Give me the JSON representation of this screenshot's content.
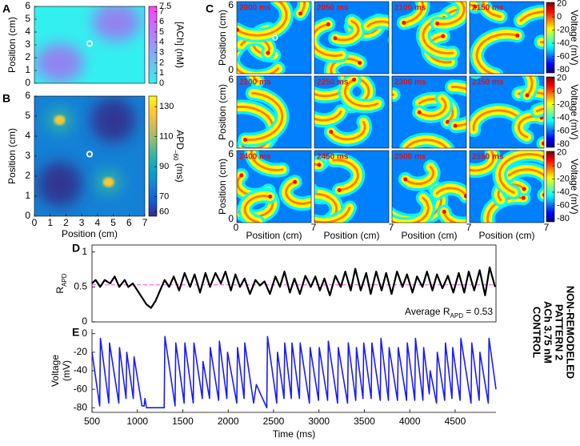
{
  "chart_data": [
    {
      "type": "heatmap",
      "label": "A",
      "ylabel": "Position (cm)",
      "xlim": [
        0,
        7
      ],
      "ylim": [
        0,
        6
      ],
      "yticks": [
        0,
        1,
        2,
        3,
        4,
        5,
        6
      ],
      "marker": [
        3.5,
        3.1
      ],
      "colorbar": {
        "label": "[ACh] (nM)",
        "lim": [
          0,
          7.5
        ],
        "ticks": [
          0,
          1,
          2,
          3,
          4,
          5,
          6,
          7,
          7.5
        ],
        "colors": [
          "#33f0f0",
          "#ff40ff"
        ]
      }
    },
    {
      "type": "heatmap",
      "label": "B",
      "xlabel": "Position (cm)",
      "ylabel": "Position (cm)",
      "xlim": [
        0,
        7
      ],
      "ylim": [
        0,
        6
      ],
      "xticks": [
        0,
        1,
        2,
        3,
        4,
        5,
        6,
        7
      ],
      "yticks": [
        0,
        1,
        2,
        3,
        4,
        5,
        6
      ],
      "marker": [
        3.5,
        3.1
      ],
      "colorbar": {
        "label": "APD",
        "label_sub": "−60",
        "label_unit": " (ms)",
        "lim": [
          57,
          137
        ],
        "ticks": [
          60,
          70,
          90,
          110,
          130
        ],
        "colors": [
          "#352a87",
          "#0f5cdd",
          "#1481d6",
          "#06a4ca",
          "#2eb7a4",
          "#87bf77",
          "#d1bb59",
          "#fec832",
          "#f9fb0e"
        ]
      }
    },
    {
      "type": "heatmap-grid",
      "label": "C",
      "frames": [
        "2000 ms",
        "2050 ms",
        "2100 ms",
        "2150 ms",
        "2200 ms",
        "2250 ms",
        "2300 ms",
        "2350 ms",
        "2400 ms",
        "2450 ms",
        "2500 ms",
        "2550 ms"
      ],
      "xlabel": "Position (cm)",
      "ylabel": "Position (cm)",
      "xlim": [
        0,
        7
      ],
      "ylim": [
        0,
        6
      ],
      "xticks": [
        0,
        7
      ],
      "yticks": [
        0,
        6
      ],
      "marker": [
        3.6,
        3.0
      ],
      "colorbar": {
        "label": "Voltage (mV)",
        "lim": [
          -85,
          22
        ],
        "ticks": [
          -80,
          -60,
          -40,
          -20,
          0,
          20
        ],
        "colors": [
          "#00007f",
          "#0000ff",
          "#007fff",
          "#00ffff",
          "#7fff7f",
          "#ffff00",
          "#ff7f00",
          "#ff0000",
          "#7f0000"
        ]
      }
    },
    {
      "type": "line",
      "label": "D",
      "ylabel": "R",
      "ylabel_sub": "APD",
      "xlim": [
        500,
        4950
      ],
      "ylim": [
        0,
        1.1
      ],
      "yticks": [
        0,
        0.5,
        1
      ],
      "x": [
        500,
        540,
        590,
        640,
        700,
        750,
        800,
        860,
        900,
        950,
        1000,
        1050,
        1100,
        1150,
        1200,
        1250,
        1300,
        1350,
        1400,
        1460,
        1520,
        1580,
        1630,
        1690,
        1750,
        1800,
        1860,
        1920,
        1970,
        2030,
        2080,
        2130,
        2180,
        2240,
        2300,
        2350,
        2400,
        2460,
        2520,
        2570,
        2620,
        2680,
        2730,
        2790,
        2850,
        2910,
        2960,
        3010,
        3060,
        3120,
        3180,
        3240,
        3290,
        3350,
        3400,
        3460,
        3520,
        3570,
        3630,
        3690,
        3740,
        3800,
        3860,
        3920,
        3970,
        4030,
        4080,
        4140,
        4190,
        4250,
        4300,
        4360,
        4420,
        4480,
        4540,
        4600,
        4650,
        4710,
        4770,
        4830,
        4880,
        4940
      ],
      "series": [
        {
          "color": "#000000",
          "values": [
            0.55,
            0.6,
            0.5,
            0.6,
            0.55,
            0.65,
            0.5,
            0.6,
            0.5,
            0.55,
            0.45,
            0.35,
            0.25,
            0.2,
            0.3,
            0.45,
            0.6,
            0.5,
            0.65,
            0.45,
            0.7,
            0.5,
            0.68,
            0.42,
            0.7,
            0.5,
            0.7,
            0.55,
            0.72,
            0.45,
            0.68,
            0.5,
            0.62,
            0.4,
            0.6,
            0.52,
            0.58,
            0.4,
            0.65,
            0.5,
            0.72,
            0.42,
            0.62,
            0.4,
            0.66,
            0.5,
            0.65,
            0.45,
            0.62,
            0.38,
            0.66,
            0.5,
            0.72,
            0.45,
            0.76,
            0.45,
            0.7,
            0.4,
            0.72,
            0.45,
            0.7,
            0.4,
            0.72,
            0.5,
            0.68,
            0.42,
            0.65,
            0.5,
            0.72,
            0.45,
            0.68,
            0.48,
            0.66,
            0.42,
            0.7,
            0.42,
            0.72,
            0.45,
            0.74,
            0.38,
            0.78,
            0.5
          ]
        }
      ],
      "reference": {
        "value": 0.53,
        "color": "#ff40ff"
      },
      "annotation": [
        "Average R",
        "APD",
        " = 0.53"
      ]
    },
    {
      "type": "line",
      "label": "E",
      "ylabel": [
        "Voltage",
        "(mV)"
      ],
      "xlabel": "Time (ms)",
      "xlim": [
        500,
        4950
      ],
      "ylim": [
        -85,
        5
      ],
      "xticks": [
        500,
        1000,
        1500,
        2000,
        2500,
        3000,
        3500,
        4000,
        4500
      ],
      "yticks": [
        0,
        -20,
        -40,
        -60,
        -80
      ],
      "x": [
        500,
        585,
        593,
        685,
        693,
        795,
        803,
        875,
        883,
        955,
        963,
        1050,
        1075,
        1083,
        1100,
        1295,
        1303,
        1415,
        1423,
        1515,
        1523,
        1615,
        1623,
        1715,
        1723,
        1795,
        1803,
        1895,
        1903,
        1985,
        1993,
        2095,
        2103,
        2175,
        2183,
        2280,
        2310,
        2425,
        2433,
        2535,
        2543,
        2615,
        2623,
        2695,
        2703,
        2785,
        2793,
        2895,
        2903,
        2995,
        3003,
        3095,
        3103,
        3205,
        3213,
        3315,
        3323,
        3405,
        3413,
        3485,
        3493,
        3575,
        3583,
        3675,
        3683,
        3765,
        3773,
        3865,
        3873,
        3965,
        3973,
        4055,
        4063,
        4145,
        4153,
        4215,
        4225,
        4295,
        4303,
        4385,
        4393,
        4465,
        4473,
        4555,
        4563,
        4675,
        4683,
        4765,
        4773,
        4865,
        4873,
        4950
      ],
      "series": [
        {
          "color": "#1a1aff",
          "values": [
            -20,
            -78,
            -5,
            -75,
            -10,
            -75,
            -15,
            -70,
            -20,
            -70,
            -25,
            -78,
            -78,
            -70,
            -80,
            -80,
            -3,
            -78,
            -10,
            -75,
            -10,
            -75,
            -10,
            -70,
            -30,
            -70,
            -15,
            -72,
            -8,
            -70,
            -20,
            -75,
            -15,
            -70,
            -10,
            -75,
            -55,
            -80,
            -3,
            -75,
            -20,
            -70,
            -10,
            -70,
            -10,
            -70,
            -10,
            -75,
            -15,
            -72,
            -15,
            -72,
            -8,
            -75,
            -15,
            -75,
            -10,
            -72,
            -15,
            -70,
            -10,
            -70,
            -10,
            -72,
            -5,
            -72,
            -15,
            -72,
            -15,
            -72,
            -10,
            -72,
            -5,
            -72,
            -15,
            -65,
            -40,
            -75,
            -20,
            -72,
            -10,
            -70,
            -15,
            -72,
            -5,
            -75,
            -10,
            -72,
            -20,
            -75,
            -5,
            -60
          ]
        }
      ]
    }
  ],
  "side_text": [
    "NON-REMODELED",
    "PATTERN  2",
    "ACh 3.75 nM",
    "CONTROL"
  ]
}
